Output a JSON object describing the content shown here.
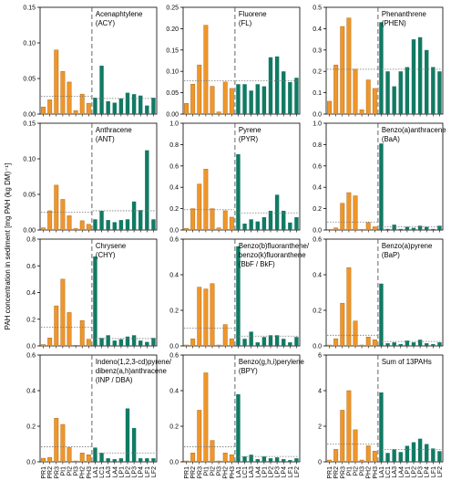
{
  "figure": {
    "y_axis_label": "PAH concentration in sediment [mg PAH (kg DM)⁻¹]",
    "x_categories": [
      "PR1",
      "PR2",
      "PR3",
      "PI1",
      "PI2",
      "PI3",
      "PH2",
      "PH3",
      "LA1",
      "LC1",
      "LA3",
      "LA4",
      "LP1",
      "LP2",
      "LP3",
      "LP4",
      "LF1",
      "LF2"
    ],
    "colors": {
      "river": "#f0962a",
      "lake": "#117a64",
      "mean_line": "#777777",
      "divider": "#555555"
    }
  },
  "chart_data": [
    {
      "type": "bar",
      "title": [
        "Acenaphtylene",
        "(ACY)"
      ],
      "ylim": [
        0,
        0.15
      ],
      "yticks": [
        "0.00",
        "0.05",
        "0.10",
        "0.15"
      ],
      "left_mean": 0.025,
      "right_mean": 0.022,
      "values": [
        0.01,
        0.02,
        0.09,
        0.06,
        0.045,
        0.005,
        0.028,
        0.015,
        0.023,
        0.068,
        0.018,
        0.016,
        0.022,
        0.03,
        0.028,
        0.026,
        0.012,
        0.023
      ]
    },
    {
      "type": "bar",
      "title": [
        "Fluorene",
        "(FL)"
      ],
      "ylim": [
        0,
        0.25
      ],
      "yticks": [
        "0.00",
        "0.05",
        "0.10",
        "0.15",
        "0.20",
        "0.25"
      ],
      "left_mean": 0.078,
      "right_mean": 0.078,
      "values": [
        0.025,
        0.07,
        0.115,
        0.208,
        0.065,
        0.005,
        0.075,
        0.06,
        0.07,
        0.07,
        0.055,
        0.07,
        0.065,
        0.133,
        0.135,
        0.1,
        0.075,
        0.085
      ]
    },
    {
      "type": "bar",
      "title": [
        "Phenanthrene",
        "(PHEN)"
      ],
      "ylim": [
        0,
        0.5
      ],
      "yticks": [
        "0.0",
        "0.1",
        "0.2",
        "0.3",
        "0.4",
        "0.5"
      ],
      "left_mean": 0.21,
      "right_mean": 0.21,
      "values": [
        0.06,
        0.23,
        0.41,
        0.45,
        0.21,
        0.02,
        0.16,
        0.12,
        0.43,
        0.2,
        0.13,
        0.2,
        0.22,
        0.35,
        0.36,
        0.3,
        0.22,
        0.2
      ]
    },
    {
      "type": "bar",
      "title": [
        "Anthracene",
        "(ANT)"
      ],
      "ylim": [
        0,
        0.15
      ],
      "yticks": [
        "0.00",
        "0.05",
        "0.10",
        "0.15"
      ],
      "left_mean": 0.025,
      "right_mean": 0.027,
      "values": [
        0.003,
        0.027,
        0.063,
        0.043,
        0.02,
        0.002,
        0.013,
        0.008,
        0.015,
        0.027,
        0.014,
        0.011,
        0.014,
        0.015,
        0.04,
        0.028,
        0.112,
        0.015
      ]
    },
    {
      "type": "bar",
      "title": [
        "Pyrene",
        "(PYR)"
      ],
      "ylim": [
        0,
        1.0
      ],
      "yticks": [
        "0.0",
        "0.2",
        "0.4",
        "0.6",
        "0.8",
        "1.0"
      ],
      "left_mean": 0.19,
      "right_mean": 0.16,
      "values": [
        0.015,
        0.2,
        0.43,
        0.57,
        0.2,
        0.02,
        0.18,
        0.12,
        0.71,
        0.06,
        0.1,
        0.08,
        0.12,
        0.18,
        0.33,
        0.18,
        0.07,
        0.12
      ]
    },
    {
      "type": "bar",
      "title": [
        "Benzo(a)anthracene",
        "(BaA)"
      ],
      "ylim": [
        0,
        1.0
      ],
      "yticks": [
        "0.0",
        "0.2",
        "0.4",
        "0.6",
        "0.8",
        "1.0"
      ],
      "left_mean": 0.075,
      "right_mean": 0.03,
      "values": [
        0.005,
        0.02,
        0.25,
        0.35,
        0.32,
        0.005,
        0.07,
        0.03,
        0.81,
        0.01,
        0.05,
        0.01,
        0.03,
        0.02,
        0.04,
        0.03,
        0.01,
        0.04
      ]
    },
    {
      "type": "bar",
      "title": [
        "Chrysene",
        "(CHY)"
      ],
      "ylim": [
        0,
        0.8
      ],
      "yticks": [
        "0.0",
        "0.2",
        "0.4",
        "0.6",
        "0.8"
      ],
      "left_mean": 0.14,
      "right_mean": 0.055,
      "values": [
        0.01,
        0.06,
        0.3,
        0.5,
        0.25,
        0.005,
        0.19,
        0.05,
        0.67,
        0.06,
        0.08,
        0.04,
        0.05,
        0.07,
        0.08,
        0.04,
        0.03,
        0.06
      ]
    },
    {
      "type": "bar",
      "title": [
        "Benzo(b)fluoranthene/",
        "benzo(k)fluoranthene",
        "(BbF / BkF)"
      ],
      "ylim": [
        0,
        0.6
      ],
      "yticks": [
        "0.0",
        "0.2",
        "0.4",
        "0.6"
      ],
      "left_mean": 0.1,
      "right_mean": 0.055,
      "values": [
        0.005,
        0.04,
        0.33,
        0.32,
        0.35,
        0.005,
        0.12,
        0.04,
        0.56,
        0.04,
        0.08,
        0.02,
        0.05,
        0.06,
        0.06,
        0.04,
        0.02,
        0.05
      ]
    },
    {
      "type": "bar",
      "title": [
        "Benzo(a)pyrene",
        "(BaP)"
      ],
      "ylim": [
        0,
        0.6
      ],
      "yticks": [
        "0.0",
        "0.2",
        "0.4",
        "0.6"
      ],
      "left_mean": 0.06,
      "right_mean": 0.025,
      "values": [
        0.005,
        0.04,
        0.24,
        0.44,
        0.14,
        0.005,
        0.05,
        0.035,
        0.35,
        0.015,
        0.02,
        0.01,
        0.03,
        0.02,
        0.035,
        0.015,
        0.01,
        0.02
      ]
    },
    {
      "type": "bar",
      "title": [
        "Indeno(1,2,3-cd)pyrene/",
        "dibenz(a,h)anthracene",
        "(INP / DBA)"
      ],
      "ylim": [
        0,
        0.6
      ],
      "yticks": [
        "0.0",
        "0.2",
        "0.4",
        "0.6"
      ],
      "left_mean": 0.085,
      "right_mean": 0.05,
      "values": [
        0.02,
        0.025,
        0.245,
        0.21,
        0.08,
        0.005,
        0.05,
        0.04,
        0.08,
        0.05,
        0.02,
        0.015,
        0.02,
        0.3,
        0.19,
        0.02,
        0.02,
        0.02
      ]
    },
    {
      "type": "bar",
      "title": [
        "Benzo(g,h,i)perylene",
        "(BPY)"
      ],
      "ylim": [
        0,
        0.6
      ],
      "yticks": [
        "0.0",
        "0.2",
        "0.4",
        "0.6"
      ],
      "left_mean": 0.085,
      "right_mean": 0.03,
      "values": [
        0.005,
        0.05,
        0.29,
        0.5,
        0.12,
        0.005,
        0.05,
        0.04,
        0.38,
        0.03,
        0.04,
        0.015,
        0.03,
        0.02,
        0.025,
        0.015,
        0.01,
        0.02
      ]
    },
    {
      "type": "bar",
      "title": [
        "Sum of 13PAHs"
      ],
      "ylim": [
        0,
        6
      ],
      "yticks": [
        "0",
        "2",
        "4",
        "6"
      ],
      "left_mean": 1.0,
      "right_mean": 0.7,
      "values": [
        0.1,
        0.7,
        2.9,
        4.0,
        1.8,
        0.1,
        0.9,
        0.6,
        3.9,
        0.5,
        0.7,
        0.55,
        0.9,
        1.1,
        1.3,
        1.0,
        0.75,
        0.6
      ]
    }
  ]
}
